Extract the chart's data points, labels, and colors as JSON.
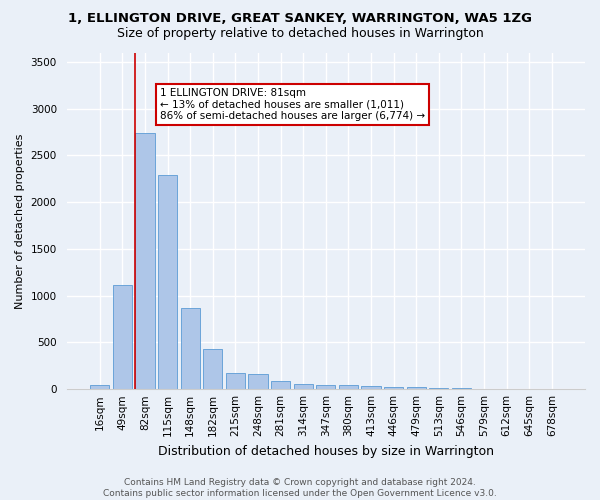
{
  "title": "1, ELLINGTON DRIVE, GREAT SANKEY, WARRINGTON, WA5 1ZG",
  "subtitle": "Size of property relative to detached houses in Warrington",
  "xlabel": "Distribution of detached houses by size in Warrington",
  "ylabel": "Number of detached properties",
  "categories": [
    "16sqm",
    "49sqm",
    "82sqm",
    "115sqm",
    "148sqm",
    "182sqm",
    "215sqm",
    "248sqm",
    "281sqm",
    "314sqm",
    "347sqm",
    "380sqm",
    "413sqm",
    "446sqm",
    "479sqm",
    "513sqm",
    "546sqm",
    "579sqm",
    "612sqm",
    "645sqm",
    "678sqm"
  ],
  "values": [
    50,
    1110,
    2740,
    2290,
    870,
    430,
    170,
    160,
    90,
    60,
    50,
    50,
    30,
    25,
    20,
    10,
    8,
    5,
    3,
    2,
    2
  ],
  "bar_color": "#aec6e8",
  "bar_edge_color": "#5b9bd5",
  "vline_bin_index": 2,
  "annotation_text": "1 ELLINGTON DRIVE: 81sqm\n← 13% of detached houses are smaller (1,011)\n86% of semi-detached houses are larger (6,774) →",
  "annotation_box_color": "#ffffff",
  "annotation_box_edge": "#cc0000",
  "ylim": [
    0,
    3600
  ],
  "yticks": [
    0,
    500,
    1000,
    1500,
    2000,
    2500,
    3000,
    3500
  ],
  "bg_color": "#eaf0f8",
  "grid_color": "#ffffff",
  "footer": "Contains HM Land Registry data © Crown copyright and database right 2024.\nContains public sector information licensed under the Open Government Licence v3.0.",
  "title_fontsize": 9.5,
  "subtitle_fontsize": 9,
  "xlabel_fontsize": 9,
  "ylabel_fontsize": 8,
  "tick_fontsize": 7.5,
  "footer_fontsize": 6.5
}
